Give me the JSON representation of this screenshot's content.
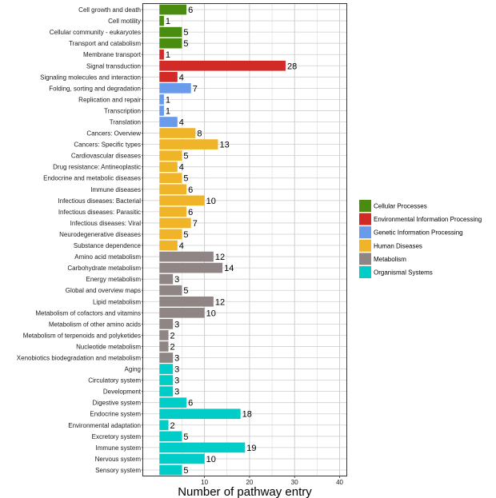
{
  "chart_data": {
    "type": "bar",
    "orientation": "horizontal",
    "xlabel": "Number of pathway entry",
    "ylabel": "",
    "x_ticks": [
      10,
      20,
      30,
      40
    ],
    "xlim": [
      -3.6,
      41.5
    ],
    "grid": true,
    "legend_position": "right",
    "groups": [
      {
        "name": "Cellular Processes",
        "color": "#4a8c0f"
      },
      {
        "name": "Environmental Information Processing",
        "color": "#d12a27"
      },
      {
        "name": "Genetic Information Processing",
        "color": "#6a9aea"
      },
      {
        "name": "Human Diseases",
        "color": "#f0b429"
      },
      {
        "name": "Metabolism",
        "color": "#8f8585"
      },
      {
        "name": "Organismal Systems",
        "color": "#00ccc8"
      }
    ],
    "bars": [
      {
        "label": "Cell growth and death",
        "value": 6,
        "group": 0
      },
      {
        "label": "Cell motility",
        "value": 1,
        "group": 0
      },
      {
        "label": "Cellular community - eukaryotes",
        "value": 5,
        "group": 0
      },
      {
        "label": "Transport and catabolism",
        "value": 5,
        "group": 0
      },
      {
        "label": "Membrane transport",
        "value": 1,
        "group": 1
      },
      {
        "label": "Signal transduction",
        "value": 28,
        "group": 1
      },
      {
        "label": "Signaling molecules and interaction",
        "value": 4,
        "group": 1
      },
      {
        "label": "Folding, sorting and degradation",
        "value": 7,
        "group": 2
      },
      {
        "label": "Replication and repair",
        "value": 1,
        "group": 2
      },
      {
        "label": "Transcription",
        "value": 1,
        "group": 2
      },
      {
        "label": "Translation",
        "value": 4,
        "group": 2
      },
      {
        "label": "Cancers: Overview",
        "value": 8,
        "group": 3
      },
      {
        "label": "Cancers: Specific types",
        "value": 13,
        "group": 3
      },
      {
        "label": "Cardiovascular diseases",
        "value": 5,
        "group": 3
      },
      {
        "label": "Drug resistance: Antineoplastic",
        "value": 4,
        "group": 3
      },
      {
        "label": "Endocrine and metabolic diseases",
        "value": 5,
        "group": 3
      },
      {
        "label": "Immune diseases",
        "value": 6,
        "group": 3
      },
      {
        "label": "Infectious diseases: Bacterial",
        "value": 10,
        "group": 3
      },
      {
        "label": "Infectious diseases: Parasitic",
        "value": 6,
        "group": 3
      },
      {
        "label": "Infectious diseases: Viral",
        "value": 7,
        "group": 3
      },
      {
        "label": "Neurodegenerative diseases",
        "value": 5,
        "group": 3
      },
      {
        "label": "Substance dependence",
        "value": 4,
        "group": 3
      },
      {
        "label": "Amino acid metabolism",
        "value": 12,
        "group": 4
      },
      {
        "label": "Carbohydrate metabolism",
        "value": 14,
        "group": 4
      },
      {
        "label": "Energy metabolism",
        "value": 3,
        "group": 4
      },
      {
        "label": "Global and overview maps",
        "value": 5,
        "group": 4
      },
      {
        "label": "Lipid metabolism",
        "value": 12,
        "group": 4
      },
      {
        "label": "Metabolism of cofactors and vitamins",
        "value": 10,
        "group": 4
      },
      {
        "label": "Metabolism of other amino acids",
        "value": 3,
        "group": 4
      },
      {
        "label": "Metabolism of terpenoids and polyketides",
        "value": 2,
        "group": 4
      },
      {
        "label": "Nucleotide metabolism",
        "value": 2,
        "group": 4
      },
      {
        "label": "Xenobiotics biodegradation and metabolism",
        "value": 3,
        "group": 4
      },
      {
        "label": "Aging",
        "value": 3,
        "group": 5
      },
      {
        "label": "Circulatory system",
        "value": 3,
        "group": 5
      },
      {
        "label": "Development",
        "value": 3,
        "group": 5
      },
      {
        "label": "Digestive system",
        "value": 6,
        "group": 5
      },
      {
        "label": "Endocrine system",
        "value": 18,
        "group": 5
      },
      {
        "label": "Environmental adaptation",
        "value": 2,
        "group": 5
      },
      {
        "label": "Excretory system",
        "value": 5,
        "group": 5
      },
      {
        "label": "Immune system",
        "value": 19,
        "group": 5
      },
      {
        "label": "Nervous system",
        "value": 10,
        "group": 5
      },
      {
        "label": "Sensory system",
        "value": 5,
        "group": 5
      }
    ]
  }
}
